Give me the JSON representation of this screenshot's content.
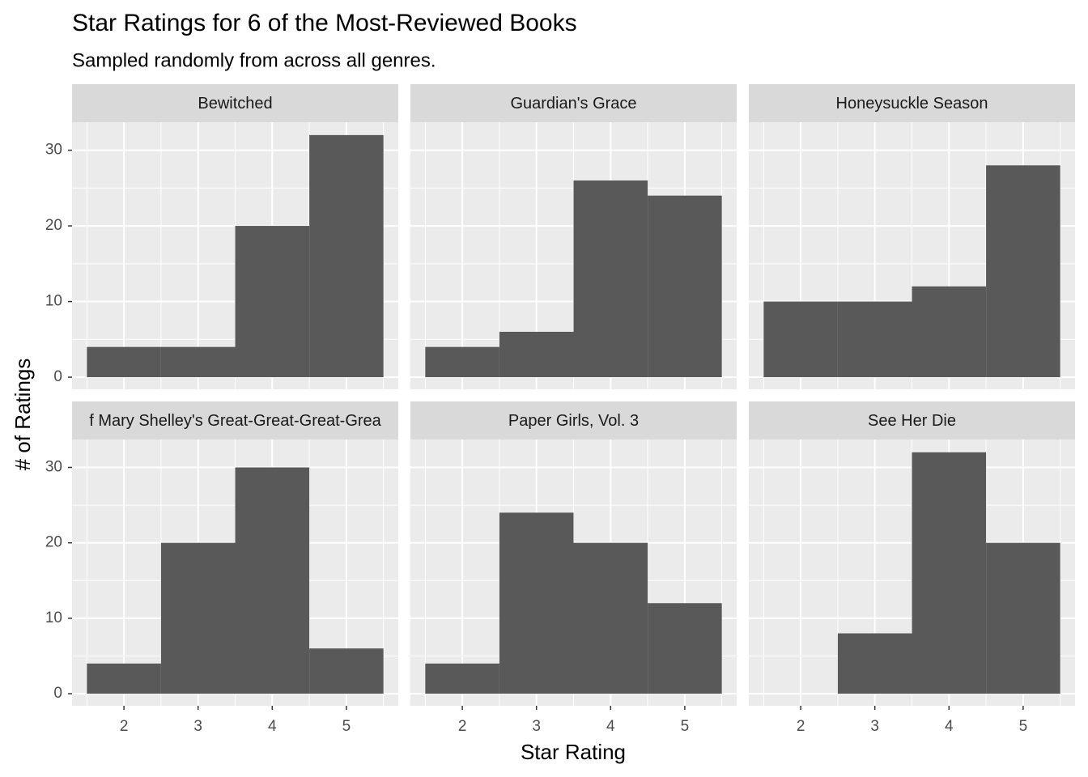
{
  "chart_data": {
    "type": "histogram",
    "title": "Star Ratings for 6 of the Most-Reviewed Books",
    "subtitle": "Sampled randomly from across all genres.",
    "xlabel": "Star Rating",
    "ylabel": "# of Ratings",
    "bins": [
      1.5,
      2.5,
      3.5,
      4.5,
      5.5
    ],
    "color": "#595959",
    "xlim": [
      1.3,
      5.7
    ],
    "ylim": [
      -1.6,
      33.7
    ],
    "xticks": [
      2,
      3,
      4,
      5
    ],
    "yticks": [
      0,
      10,
      20,
      30
    ],
    "xminor": [
      1.5,
      2.5,
      3.5,
      4.5,
      5.5
    ],
    "yminor": [
      5,
      15,
      25
    ],
    "grid": true,
    "facets": [
      {
        "name": "Bewitched",
        "values": [
          4,
          4,
          20,
          32
        ]
      },
      {
        "name": "Guardian's Grace",
        "values": [
          4,
          6,
          26,
          24
        ]
      },
      {
        "name": "Honeysuckle Season",
        "values": [
          10,
          10,
          12,
          28
        ]
      },
      {
        "name": "f Mary Shelley's Great-Great-Great-Grea",
        "values": [
          4,
          20,
          30,
          6
        ]
      },
      {
        "name": "Paper Girls, Vol. 3",
        "values": [
          4,
          24,
          20,
          12
        ]
      },
      {
        "name": "See Her Die",
        "values": [
          0,
          8,
          32,
          20
        ]
      }
    ]
  }
}
